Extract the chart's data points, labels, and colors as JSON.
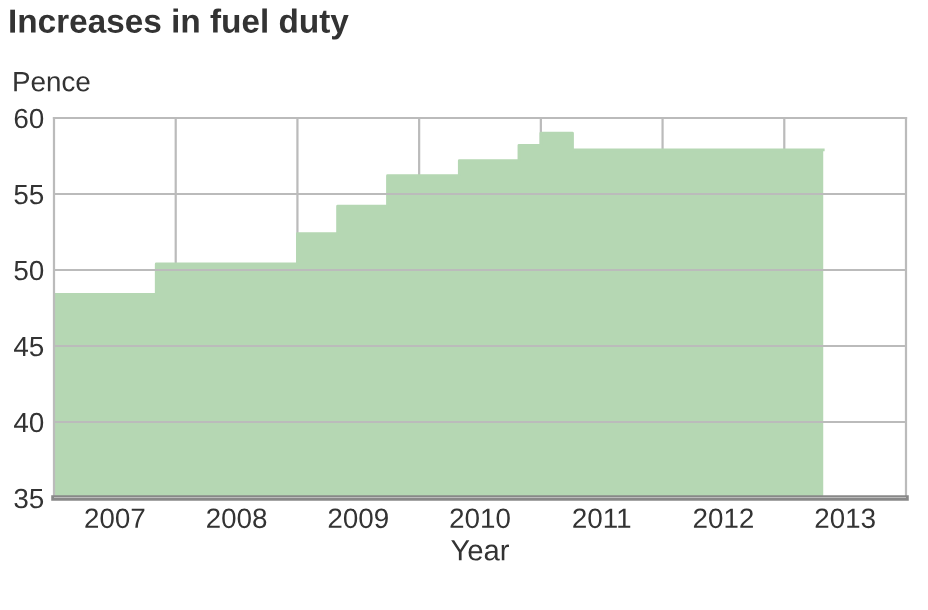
{
  "chart_data": {
    "type": "area",
    "title": "Increases in fuel duty",
    "ylabel": "Pence",
    "xlabel": "Year",
    "x": [
      2007,
      2007.84,
      2007.84,
      2009,
      2009,
      2009.33,
      2009.33,
      2009.74,
      2009.74,
      2010.33,
      2010.33,
      2010.82,
      2010.82,
      2011,
      2011,
      2011.26,
      2011.26,
      2013.32
    ],
    "values": [
      48.4,
      48.4,
      50.4,
      50.4,
      52.4,
      52.4,
      54.2,
      54.2,
      56.2,
      56.2,
      57.2,
      57.2,
      58.2,
      58.2,
      59.0,
      59.0,
      57.9,
      57.9
    ],
    "color": "#b5d7b3",
    "xlim": [
      2007,
      2014
    ],
    "xticks": [
      {
        "value": 2007.5,
        "label": "2007"
      },
      {
        "value": 2008,
        "label": null
      },
      {
        "value": 2008.5,
        "label": "2008"
      },
      {
        "value": 2009,
        "label": null
      },
      {
        "value": 2009.5,
        "label": "2009"
      },
      {
        "value": 2010,
        "label": null
      },
      {
        "value": 2010.5,
        "label": "2010"
      },
      {
        "value": 2011,
        "label": null
      },
      {
        "value": 2011.5,
        "label": "2011"
      },
      {
        "value": 2012,
        "label": null
      },
      {
        "value": 2012.5,
        "label": "2012"
      },
      {
        "value": 2013,
        "label": null
      },
      {
        "value": 2013.5,
        "label": "2013"
      }
    ],
    "ylim": [
      35,
      60
    ],
    "yticks": [
      35,
      40,
      45,
      50,
      55,
      60
    ],
    "grid": true
  }
}
